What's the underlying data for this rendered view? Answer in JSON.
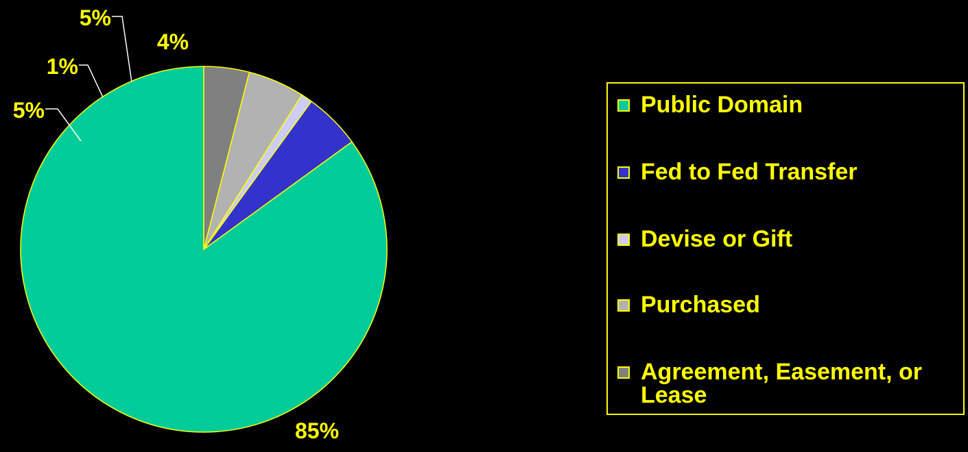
{
  "chart_data": {
    "type": "pie",
    "title": "",
    "start_angle_deg": 0,
    "direction": "counterclockwise",
    "border_color": "#ffff00",
    "label_color": "#ffff00",
    "slices": [
      {
        "label": "Public Domain",
        "value": 85,
        "display": "85%",
        "color": "#00cc99"
      },
      {
        "label": "Fed to Fed Transfer",
        "value": 5,
        "display": "5%",
        "color": "#3333cc"
      },
      {
        "label": "Devise or Gift",
        "value": 1,
        "display": "1%",
        "color": "#ccccff"
      },
      {
        "label": "Purchased",
        "value": 5,
        "display": "5%",
        "color": "#b2b2b2"
      },
      {
        "label": "Agreement, Easement, or Lease",
        "value": 4,
        "display": "4%",
        "color": "#808080"
      }
    ],
    "legend_position": "right"
  },
  "legend": {
    "items": [
      {
        "label": "Public Domain",
        "icon": "square-swatch",
        "color": "#00cc99"
      },
      {
        "label": "Fed to Fed Transfer",
        "icon": "square-swatch",
        "color": "#3333cc"
      },
      {
        "label": "Devise or Gift",
        "icon": "square-swatch",
        "color": "#ccccff"
      },
      {
        "label": "Purchased",
        "icon": "square-swatch",
        "color": "#b2b2b2"
      },
      {
        "label": "Agreement, Easement, or Lease",
        "icon": "square-swatch",
        "color": "#808080"
      }
    ]
  }
}
